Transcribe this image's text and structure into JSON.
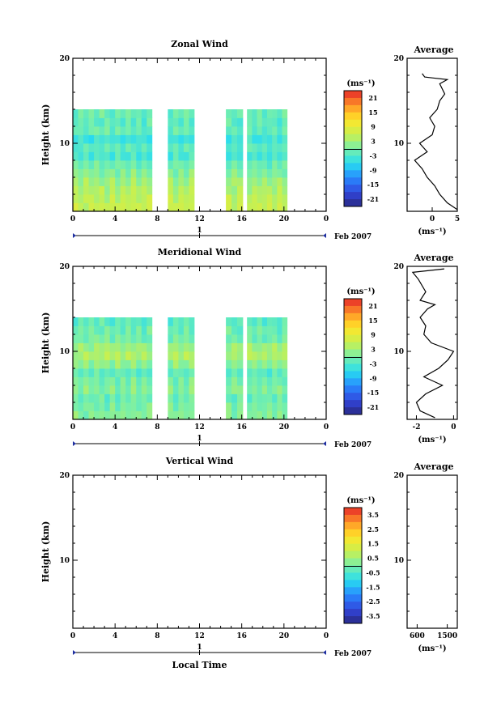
{
  "chart_data": [
    {
      "type": "heatmap",
      "title": "Zonal Wind",
      "ylabel": "Height (km)",
      "x_ticks": [
        "0",
        "4",
        "8",
        "12",
        "16",
        "20",
        "0"
      ],
      "y_ticks": [
        "20",
        "10"
      ],
      "date_marker": "1",
      "date_label": "Feb 2007",
      "xlim": [
        0,
        24
      ],
      "ylim": [
        2,
        20
      ],
      "colorbar": {
        "unit": "(ms⁻¹)",
        "ticks": [
          "21",
          "15",
          "9",
          "3",
          "-3",
          "-9",
          "-15",
          "-21"
        ],
        "range": [
          -24,
          24
        ]
      },
      "data_segments": [
        [
          0,
          7.5
        ],
        [
          9,
          11.5
        ],
        [
          14.5,
          16.1
        ],
        [
          16.5,
          20.3
        ]
      ],
      "profile_by_height": [
        {
          "h": 2.5,
          "v": 6
        },
        {
          "h": 3.5,
          "v": 5
        },
        {
          "h": 4.5,
          "v": 4
        },
        {
          "h": 5.5,
          "v": 3
        },
        {
          "h": 6.5,
          "v": 1
        },
        {
          "h": 7.5,
          "v": -1
        },
        {
          "h": 8.5,
          "v": -3
        },
        {
          "h": 9.5,
          "v": -2
        },
        {
          "h": 10.5,
          "v": -4
        },
        {
          "h": 11.5,
          "v": -1
        },
        {
          "h": 12.5,
          "v": -2
        },
        {
          "h": 13.5,
          "v": -1
        }
      ],
      "average_panel": {
        "title": "Average",
        "x_ticks": [
          "0",
          "5"
        ],
        "xlim": [
          -5,
          5
        ],
        "unit": "(ms⁻¹)",
        "y_ticks": [
          "20",
          "10"
        ],
        "profile": [
          {
            "h": 2.2,
            "v": 5
          },
          {
            "h": 3,
            "v": 3
          },
          {
            "h": 4,
            "v": 1.5
          },
          {
            "h": 5,
            "v": 0.5
          },
          {
            "h": 6,
            "v": -1
          },
          {
            "h": 7,
            "v": -2
          },
          {
            "h": 8,
            "v": -3.5
          },
          {
            "h": 9,
            "v": -1
          },
          {
            "h": 10,
            "v": -2.5
          },
          {
            "h": 11,
            "v": 0
          },
          {
            "h": 12,
            "v": 0.5
          },
          {
            "h": 13,
            "v": -0.5
          },
          {
            "h": 14,
            "v": 1
          },
          {
            "h": 15,
            "v": 1.5
          },
          {
            "h": 15.8,
            "v": 2.5
          },
          {
            "h": 17,
            "v": 1.5
          },
          {
            "h": 17.5,
            "v": 3
          },
          {
            "h": 17.7,
            "v": 0
          },
          {
            "h": 17.8,
            "v": -1.5
          },
          {
            "h": 18.2,
            "v": -2
          }
        ]
      }
    },
    {
      "type": "heatmap",
      "title": "Meridional Wind",
      "ylabel": "Height (km)",
      "x_ticks": [
        "0",
        "4",
        "8",
        "12",
        "16",
        "20",
        "0"
      ],
      "y_ticks": [
        "20",
        "10"
      ],
      "date_marker": "1",
      "date_label": "Feb 2007",
      "xlim": [
        0,
        24
      ],
      "ylim": [
        2,
        20
      ],
      "colorbar": {
        "unit": "(ms⁻¹)",
        "ticks": [
          "21",
          "15",
          "9",
          "3",
          "-3",
          "-9",
          "-15",
          "-21"
        ],
        "range": [
          -24,
          24
        ]
      },
      "data_segments": [
        [
          0,
          7.5
        ],
        [
          9,
          11.5
        ],
        [
          14.5,
          16.1
        ],
        [
          16.5,
          20.3
        ]
      ],
      "profile_by_height": [
        {
          "h": 2.5,
          "v": 1
        },
        {
          "h": 3.5,
          "v": 0
        },
        {
          "h": 4.5,
          "v": -1
        },
        {
          "h": 5.5,
          "v": 1
        },
        {
          "h": 6.5,
          "v": 0
        },
        {
          "h": 7.5,
          "v": -2
        },
        {
          "h": 8.5,
          "v": 2
        },
        {
          "h": 9.5,
          "v": 4
        },
        {
          "h": 10.5,
          "v": 3
        },
        {
          "h": 11.5,
          "v": 0
        },
        {
          "h": 12.5,
          "v": -1
        },
        {
          "h": 13.5,
          "v": -2
        }
      ],
      "average_panel": {
        "title": "Average",
        "x_ticks": [
          "-2",
          "0"
        ],
        "xlim": [
          -2.5,
          0.2
        ],
        "unit": "(ms⁻¹)",
        "y_ticks": [
          "20",
          "10"
        ],
        "profile": [
          {
            "h": 2.2,
            "v": -1.0
          },
          {
            "h": 3,
            "v": -1.8
          },
          {
            "h": 4,
            "v": -2.0
          },
          {
            "h": 5,
            "v": -1.5
          },
          {
            "h": 6,
            "v": -0.6
          },
          {
            "h": 7,
            "v": -1.6
          },
          {
            "h": 8,
            "v": -0.8
          },
          {
            "h": 9,
            "v": -0.3
          },
          {
            "h": 10,
            "v": 0.0
          },
          {
            "h": 11,
            "v": -1.2
          },
          {
            "h": 12,
            "v": -1.6
          },
          {
            "h": 13,
            "v": -1.5
          },
          {
            "h": 14,
            "v": -1.8
          },
          {
            "h": 15,
            "v": -1.4
          },
          {
            "h": 15.5,
            "v": -1.0
          },
          {
            "h": 16,
            "v": -1.8
          },
          {
            "h": 17,
            "v": -1.5
          },
          {
            "h": 18.5,
            "v": -1.9
          },
          {
            "h": 19.3,
            "v": -2.2
          },
          {
            "h": 19.7,
            "v": -0.5
          }
        ]
      }
    },
    {
      "type": "heatmap",
      "title": "Vertical Wind",
      "ylabel": "Height (km)",
      "xlabel": "Local Time",
      "x_ticks": [
        "0",
        "4",
        "8",
        "12",
        "16",
        "20",
        "0"
      ],
      "y_ticks": [
        "20",
        "10"
      ],
      "date_marker": "1",
      "date_label": "Feb 2007",
      "xlim": [
        0,
        24
      ],
      "ylim": [
        2,
        20
      ],
      "colorbar": {
        "unit": "(ms⁻¹)",
        "ticks": [
          "3.5",
          "2.5",
          "1.5",
          "0.5",
          "-0.5",
          "-1.5",
          "-2.5",
          "-3.5"
        ],
        "range": [
          -4,
          4
        ]
      },
      "data_segments": [],
      "profile_by_height": [],
      "average_panel": {
        "title": "Average",
        "x_ticks": [
          "600",
          "1500"
        ],
        "xlim": [
          300,
          1800
        ],
        "unit": "(ms⁻¹)",
        "y_ticks": [
          "20",
          "10"
        ],
        "profile": []
      }
    }
  ]
}
